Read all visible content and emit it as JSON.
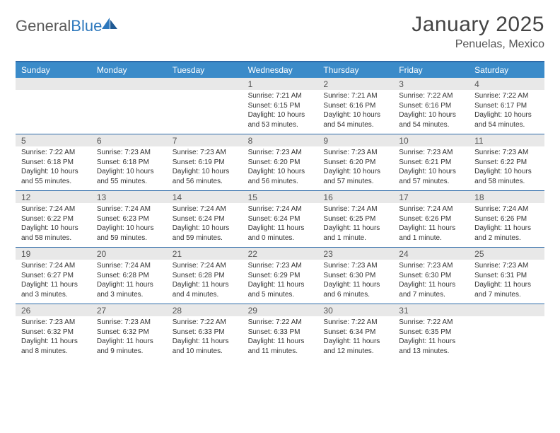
{
  "brand": {
    "name_part1": "General",
    "name_part2": "Blue"
  },
  "title": "January 2025",
  "location": "Penuelas, Mexico",
  "day_labels": [
    "Sunday",
    "Monday",
    "Tuesday",
    "Wednesday",
    "Thursday",
    "Friday",
    "Saturday"
  ],
  "colors": {
    "header_bar": "#3b8bc9",
    "header_border_top": "#2d6aa8",
    "daynum_bg": "#e8e8e8",
    "text": "#333333",
    "logo_blue": "#2d78bd"
  },
  "weeks": [
    [
      {
        "num": "",
        "sunrise": "",
        "sunset": "",
        "daylight1": "",
        "daylight2": ""
      },
      {
        "num": "",
        "sunrise": "",
        "sunset": "",
        "daylight1": "",
        "daylight2": ""
      },
      {
        "num": "",
        "sunrise": "",
        "sunset": "",
        "daylight1": "",
        "daylight2": ""
      },
      {
        "num": "1",
        "sunrise": "Sunrise: 7:21 AM",
        "sunset": "Sunset: 6:15 PM",
        "daylight1": "Daylight: 10 hours",
        "daylight2": "and 53 minutes."
      },
      {
        "num": "2",
        "sunrise": "Sunrise: 7:21 AM",
        "sunset": "Sunset: 6:16 PM",
        "daylight1": "Daylight: 10 hours",
        "daylight2": "and 54 minutes."
      },
      {
        "num": "3",
        "sunrise": "Sunrise: 7:22 AM",
        "sunset": "Sunset: 6:16 PM",
        "daylight1": "Daylight: 10 hours",
        "daylight2": "and 54 minutes."
      },
      {
        "num": "4",
        "sunrise": "Sunrise: 7:22 AM",
        "sunset": "Sunset: 6:17 PM",
        "daylight1": "Daylight: 10 hours",
        "daylight2": "and 54 minutes."
      }
    ],
    [
      {
        "num": "5",
        "sunrise": "Sunrise: 7:22 AM",
        "sunset": "Sunset: 6:18 PM",
        "daylight1": "Daylight: 10 hours",
        "daylight2": "and 55 minutes."
      },
      {
        "num": "6",
        "sunrise": "Sunrise: 7:23 AM",
        "sunset": "Sunset: 6:18 PM",
        "daylight1": "Daylight: 10 hours",
        "daylight2": "and 55 minutes."
      },
      {
        "num": "7",
        "sunrise": "Sunrise: 7:23 AM",
        "sunset": "Sunset: 6:19 PM",
        "daylight1": "Daylight: 10 hours",
        "daylight2": "and 56 minutes."
      },
      {
        "num": "8",
        "sunrise": "Sunrise: 7:23 AM",
        "sunset": "Sunset: 6:20 PM",
        "daylight1": "Daylight: 10 hours",
        "daylight2": "and 56 minutes."
      },
      {
        "num": "9",
        "sunrise": "Sunrise: 7:23 AM",
        "sunset": "Sunset: 6:20 PM",
        "daylight1": "Daylight: 10 hours",
        "daylight2": "and 57 minutes."
      },
      {
        "num": "10",
        "sunrise": "Sunrise: 7:23 AM",
        "sunset": "Sunset: 6:21 PM",
        "daylight1": "Daylight: 10 hours",
        "daylight2": "and 57 minutes."
      },
      {
        "num": "11",
        "sunrise": "Sunrise: 7:23 AM",
        "sunset": "Sunset: 6:22 PM",
        "daylight1": "Daylight: 10 hours",
        "daylight2": "and 58 minutes."
      }
    ],
    [
      {
        "num": "12",
        "sunrise": "Sunrise: 7:24 AM",
        "sunset": "Sunset: 6:22 PM",
        "daylight1": "Daylight: 10 hours",
        "daylight2": "and 58 minutes."
      },
      {
        "num": "13",
        "sunrise": "Sunrise: 7:24 AM",
        "sunset": "Sunset: 6:23 PM",
        "daylight1": "Daylight: 10 hours",
        "daylight2": "and 59 minutes."
      },
      {
        "num": "14",
        "sunrise": "Sunrise: 7:24 AM",
        "sunset": "Sunset: 6:24 PM",
        "daylight1": "Daylight: 10 hours",
        "daylight2": "and 59 minutes."
      },
      {
        "num": "15",
        "sunrise": "Sunrise: 7:24 AM",
        "sunset": "Sunset: 6:24 PM",
        "daylight1": "Daylight: 11 hours",
        "daylight2": "and 0 minutes."
      },
      {
        "num": "16",
        "sunrise": "Sunrise: 7:24 AM",
        "sunset": "Sunset: 6:25 PM",
        "daylight1": "Daylight: 11 hours",
        "daylight2": "and 1 minute."
      },
      {
        "num": "17",
        "sunrise": "Sunrise: 7:24 AM",
        "sunset": "Sunset: 6:26 PM",
        "daylight1": "Daylight: 11 hours",
        "daylight2": "and 1 minute."
      },
      {
        "num": "18",
        "sunrise": "Sunrise: 7:24 AM",
        "sunset": "Sunset: 6:26 PM",
        "daylight1": "Daylight: 11 hours",
        "daylight2": "and 2 minutes."
      }
    ],
    [
      {
        "num": "19",
        "sunrise": "Sunrise: 7:24 AM",
        "sunset": "Sunset: 6:27 PM",
        "daylight1": "Daylight: 11 hours",
        "daylight2": "and 3 minutes."
      },
      {
        "num": "20",
        "sunrise": "Sunrise: 7:24 AM",
        "sunset": "Sunset: 6:28 PM",
        "daylight1": "Daylight: 11 hours",
        "daylight2": "and 3 minutes."
      },
      {
        "num": "21",
        "sunrise": "Sunrise: 7:24 AM",
        "sunset": "Sunset: 6:28 PM",
        "daylight1": "Daylight: 11 hours",
        "daylight2": "and 4 minutes."
      },
      {
        "num": "22",
        "sunrise": "Sunrise: 7:23 AM",
        "sunset": "Sunset: 6:29 PM",
        "daylight1": "Daylight: 11 hours",
        "daylight2": "and 5 minutes."
      },
      {
        "num": "23",
        "sunrise": "Sunrise: 7:23 AM",
        "sunset": "Sunset: 6:30 PM",
        "daylight1": "Daylight: 11 hours",
        "daylight2": "and 6 minutes."
      },
      {
        "num": "24",
        "sunrise": "Sunrise: 7:23 AM",
        "sunset": "Sunset: 6:30 PM",
        "daylight1": "Daylight: 11 hours",
        "daylight2": "and 7 minutes."
      },
      {
        "num": "25",
        "sunrise": "Sunrise: 7:23 AM",
        "sunset": "Sunset: 6:31 PM",
        "daylight1": "Daylight: 11 hours",
        "daylight2": "and 7 minutes."
      }
    ],
    [
      {
        "num": "26",
        "sunrise": "Sunrise: 7:23 AM",
        "sunset": "Sunset: 6:32 PM",
        "daylight1": "Daylight: 11 hours",
        "daylight2": "and 8 minutes."
      },
      {
        "num": "27",
        "sunrise": "Sunrise: 7:23 AM",
        "sunset": "Sunset: 6:32 PM",
        "daylight1": "Daylight: 11 hours",
        "daylight2": "and 9 minutes."
      },
      {
        "num": "28",
        "sunrise": "Sunrise: 7:22 AM",
        "sunset": "Sunset: 6:33 PM",
        "daylight1": "Daylight: 11 hours",
        "daylight2": "and 10 minutes."
      },
      {
        "num": "29",
        "sunrise": "Sunrise: 7:22 AM",
        "sunset": "Sunset: 6:33 PM",
        "daylight1": "Daylight: 11 hours",
        "daylight2": "and 11 minutes."
      },
      {
        "num": "30",
        "sunrise": "Sunrise: 7:22 AM",
        "sunset": "Sunset: 6:34 PM",
        "daylight1": "Daylight: 11 hours",
        "daylight2": "and 12 minutes."
      },
      {
        "num": "31",
        "sunrise": "Sunrise: 7:22 AM",
        "sunset": "Sunset: 6:35 PM",
        "daylight1": "Daylight: 11 hours",
        "daylight2": "and 13 minutes."
      },
      {
        "num": "",
        "sunrise": "",
        "sunset": "",
        "daylight1": "",
        "daylight2": ""
      }
    ]
  ]
}
